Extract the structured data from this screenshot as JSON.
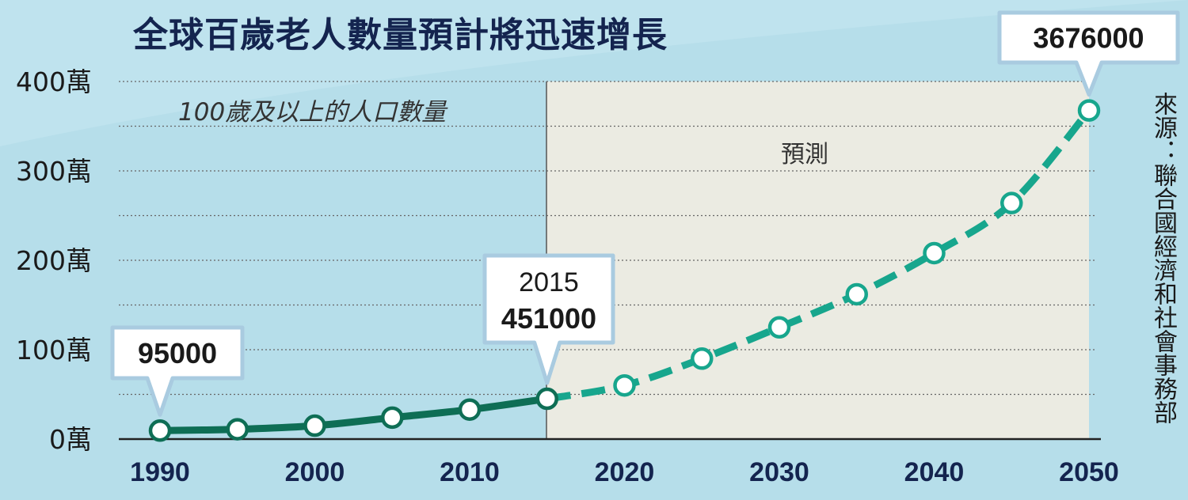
{
  "title": "全球百歲老人數量預計將迅速增長",
  "subtitle": "100歲及以上的人口數量",
  "forecast_label": "預測",
  "source": "來源：聯合國經濟和社會事務部",
  "colors": {
    "background": "#bfe3ee",
    "forecast_bg": "#ebebe2",
    "actual_line": "#0e6e55",
    "forecast_line": "#17a68d",
    "title": "#14244f"
  },
  "chart_data": {
    "type": "line",
    "title": "全球百歲老人數量預計將迅速增長",
    "ylabel": "",
    "xlabel": "",
    "x_ticks": [
      "1990",
      "2000",
      "2010",
      "2020",
      "2030",
      "2040",
      "2050"
    ],
    "y_ticks": [
      "0萬",
      "100萬",
      "200萬",
      "300萬",
      "400萬"
    ],
    "ylim": [
      0,
      4000000
    ],
    "grid": "horizontal dotted",
    "series": [
      {
        "name": "",
        "style": "solid",
        "x": [
          1990,
          1995,
          2000,
          2005,
          2010,
          2015
        ],
        "values": [
          95000,
          110000,
          150000,
          240000,
          330000,
          451000
        ]
      },
      {
        "name": "",
        "style": "dashed",
        "x": [
          2015,
          2020,
          2025,
          2030,
          2035,
          2040,
          2045,
          2050
        ],
        "values": [
          451000,
          600000,
          900000,
          1250000,
          1620000,
          2080000,
          2640000,
          3676000
        ]
      }
    ],
    "callouts": [
      {
        "x": 1990,
        "year": "",
        "value": "95000"
      },
      {
        "x": 2015,
        "year": "2015",
        "value": "451000"
      },
      {
        "x": 2050,
        "year": "",
        "value": "3676000"
      }
    ]
  }
}
